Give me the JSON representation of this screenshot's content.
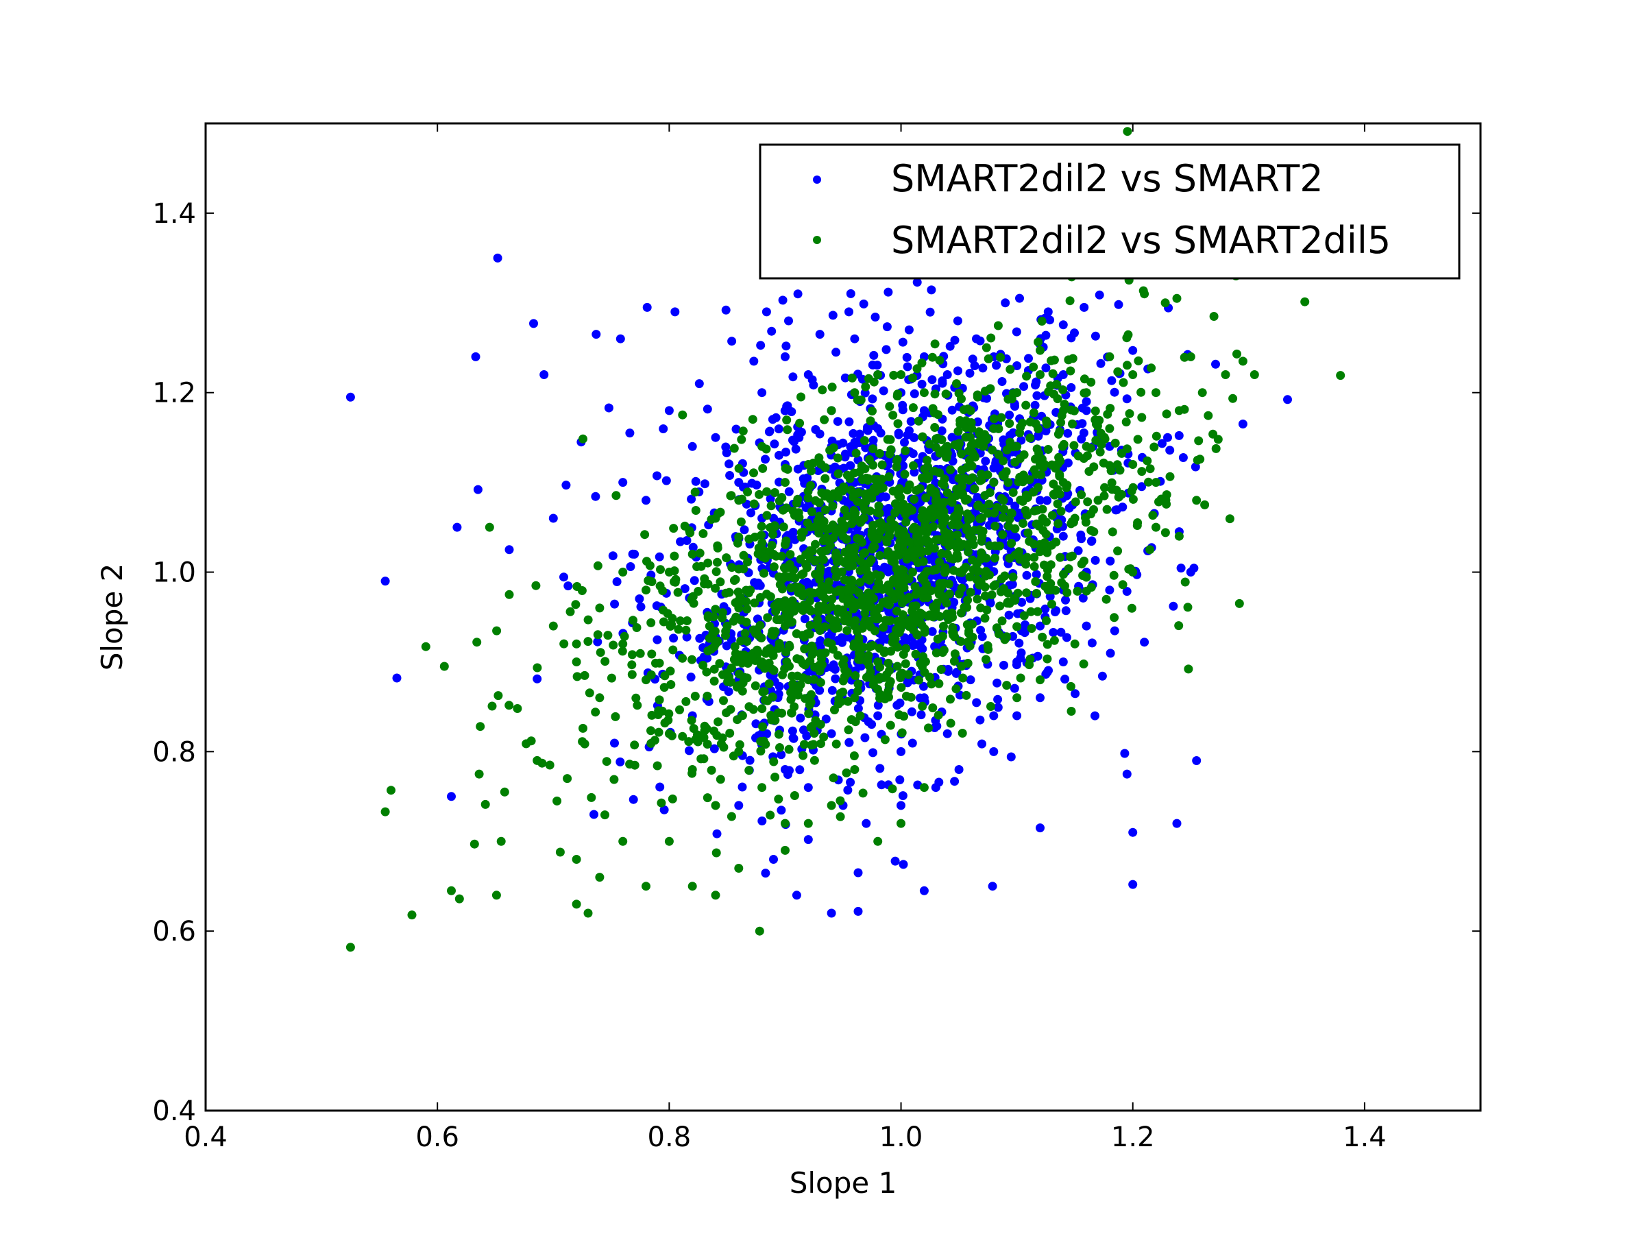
{
  "chart_data": {
    "type": "scatter",
    "xlabel": "Slope 1",
    "ylabel": "Slope 2",
    "xlim": [
      0.4,
      1.5
    ],
    "ylim": [
      0.4,
      1.5
    ],
    "x_ticks": [
      "0.4",
      "0.6",
      "0.8",
      "1.0",
      "1.2",
      "1.4"
    ],
    "y_ticks": [
      "0.4",
      "0.6",
      "0.8",
      "1.0",
      "1.2",
      "1.4"
    ],
    "grid": false,
    "legend_position": "top-right",
    "series": [
      {
        "name": "SMART2dil2 vs SMART2",
        "color": "#0000ff",
        "points": [
          [
            0.525,
            1.195
          ],
          [
            0.652,
            1.35
          ],
          [
            0.555,
            0.99
          ],
          [
            0.565,
            0.882
          ],
          [
            0.617,
            1.05
          ],
          [
            0.633,
            1.24
          ],
          [
            0.635,
            1.092
          ],
          [
            0.662,
            1.025
          ],
          [
            0.683,
            1.277
          ],
          [
            0.692,
            1.22
          ],
          [
            0.7,
            1.06
          ],
          [
            0.711,
            1.097
          ],
          [
            0.724,
            1.145
          ],
          [
            0.737,
            1.265
          ],
          [
            0.748,
            1.183
          ],
          [
            0.758,
            1.26
          ],
          [
            0.766,
            1.155
          ],
          [
            0.781,
            1.295
          ],
          [
            0.805,
            1.29
          ],
          [
            0.826,
            1.21
          ],
          [
            0.849,
            1.292
          ],
          [
            0.873,
            1.235
          ],
          [
            0.884,
            1.29
          ],
          [
            0.898,
            1.303
          ],
          [
            0.903,
            1.28
          ],
          [
            0.911,
            1.31
          ],
          [
            0.93,
            1.265
          ],
          [
            0.955,
            1.29
          ],
          [
            0.989,
            1.312
          ],
          [
            1.007,
            1.27
          ],
          [
            1.014,
            1.323
          ],
          [
            1.049,
            1.28
          ],
          [
            1.065,
            1.26
          ],
          [
            1.09,
            1.3
          ],
          [
            1.127,
            1.29
          ],
          [
            1.158,
            1.295
          ],
          [
            1.2,
            1.247
          ],
          [
            1.295,
            1.165
          ],
          [
            0.612,
            0.75
          ],
          [
            0.735,
            0.73
          ],
          [
            0.86,
            0.74
          ],
          [
            0.89,
            0.68
          ],
          [
            0.91,
            0.64
          ],
          [
            0.94,
            0.62
          ],
          [
            0.963,
            0.622
          ],
          [
            0.995,
            0.678
          ],
          [
            1.02,
            0.645
          ],
          [
            1.079,
            0.65
          ],
          [
            1.12,
            0.715
          ],
          [
            1.2,
            0.652
          ],
          [
            1.2,
            0.71
          ],
          [
            1.238,
            0.72
          ],
          [
            1.255,
            0.79
          ],
          [
            1.193,
            0.798
          ],
          [
            1.195,
            0.775
          ],
          [
            1.21,
            0.922
          ],
          [
            1.235,
            0.962
          ],
          [
            1.25,
            1.0
          ],
          [
            1.24,
            1.045
          ],
          [
            1.23,
            1.15
          ],
          [
            0.82,
            1.14
          ],
          [
            0.8,
            1.18
          ],
          [
            0.78,
            1.08
          ],
          [
            0.77,
            1.02
          ],
          [
            0.76,
            1.1
          ],
          [
            0.84,
            1.15
          ],
          [
            0.82,
            0.84
          ],
          [
            0.86,
            0.88
          ],
          [
            0.88,
            0.82
          ],
          [
            0.9,
            0.78
          ],
          [
            0.92,
            0.76
          ],
          [
            0.95,
            0.74
          ],
          [
            0.97,
            0.72
          ],
          [
            1.0,
            0.74
          ],
          [
            1.03,
            0.76
          ],
          [
            1.05,
            0.78
          ],
          [
            1.08,
            0.8
          ],
          [
            1.1,
            0.84
          ],
          [
            1.12,
            0.86
          ],
          [
            1.14,
            0.9
          ],
          [
            1.16,
            0.94
          ],
          [
            1.18,
            0.98
          ],
          [
            0.88,
            1.2
          ],
          [
            0.9,
            1.24
          ],
          [
            0.92,
            1.22
          ],
          [
            0.94,
            1.18
          ],
          [
            0.96,
            1.26
          ],
          [
            0.98,
            1.22
          ],
          [
            1.0,
            1.2
          ],
          [
            1.02,
            1.24
          ],
          [
            1.04,
            1.22
          ],
          [
            1.06,
            1.18
          ],
          [
            1.08,
            1.24
          ],
          [
            1.1,
            1.2
          ],
          [
            1.12,
            1.16
          ],
          [
            1.14,
            1.22
          ],
          [
            1.16,
            1.18
          ],
          [
            1.18,
            1.14
          ],
          [
            0.86,
            1.1
          ],
          [
            0.88,
            1.06
          ],
          [
            0.9,
            1.12
          ],
          [
            0.92,
            1.08
          ],
          [
            0.94,
            1.14
          ],
          [
            0.96,
            1.1
          ],
          [
            0.98,
            1.16
          ],
          [
            1.0,
            1.12
          ],
          [
            1.02,
            1.18
          ],
          [
            1.04,
            1.14
          ],
          [
            1.06,
            1.1
          ],
          [
            1.08,
            1.16
          ],
          [
            1.1,
            1.12
          ],
          [
            1.12,
            1.08
          ],
          [
            1.14,
            1.04
          ],
          [
            1.16,
            1.0
          ],
          [
            0.9,
            0.9
          ],
          [
            0.92,
            0.86
          ],
          [
            0.94,
            0.82
          ],
          [
            0.96,
            0.88
          ],
          [
            0.98,
            0.84
          ],
          [
            1.0,
            0.8
          ],
          [
            1.02,
            0.86
          ],
          [
            1.04,
            0.82
          ],
          [
            1.06,
            0.88
          ],
          [
            1.08,
            0.84
          ],
          [
            1.1,
            0.9
          ],
          [
            1.12,
            0.94
          ],
          [
            1.14,
            0.98
          ],
          [
            0.95,
            1.0
          ],
          [
            0.97,
            1.02
          ],
          [
            0.99,
            0.98
          ],
          [
            1.01,
            1.04
          ],
          [
            1.03,
            1.0
          ],
          [
            1.05,
            1.06
          ],
          [
            1.07,
            1.02
          ],
          [
            1.09,
            1.08
          ]
        ],
        "cloud": {
          "count": 1400,
          "center": [
            0.995,
            1.02
          ],
          "spread": [
            0.095,
            0.11
          ],
          "corr": 0.35
        }
      },
      {
        "name": "SMART2dil2 vs SMART2dil5",
        "color": "#007f00",
        "points": [
          [
            0.525,
            0.582
          ],
          [
            0.555,
            0.733
          ],
          [
            0.56,
            0.757
          ],
          [
            0.578,
            0.618
          ],
          [
            0.59,
            0.917
          ],
          [
            0.606,
            0.895
          ],
          [
            0.612,
            0.645
          ],
          [
            0.619,
            0.636
          ],
          [
            0.632,
            0.697
          ],
          [
            0.634,
            0.922
          ],
          [
            0.636,
            0.775
          ],
          [
            0.637,
            0.828
          ],
          [
            0.645,
            1.05
          ],
          [
            0.651,
            0.64
          ],
          [
            0.655,
            0.7
          ],
          [
            0.658,
            0.755
          ],
          [
            0.662,
            0.975
          ],
          [
            0.669,
            0.848
          ],
          [
            0.681,
            0.812
          ],
          [
            0.685,
            0.985
          ],
          [
            0.697,
            0.785
          ],
          [
            0.706,
            0.688
          ],
          [
            0.712,
            0.77
          ],
          [
            0.72,
            0.63
          ],
          [
            0.72,
            0.68
          ],
          [
            0.73,
            0.62
          ],
          [
            0.74,
            0.66
          ],
          [
            0.76,
            0.7
          ],
          [
            0.78,
            0.65
          ],
          [
            0.8,
            0.7
          ],
          [
            0.82,
            0.65
          ],
          [
            0.84,
            0.64
          ],
          [
            0.86,
            0.67
          ],
          [
            0.878,
            0.6
          ],
          [
            0.9,
            0.69
          ],
          [
            0.92,
            0.72
          ],
          [
            0.7,
            0.94
          ],
          [
            0.72,
            0.9
          ],
          [
            0.74,
            0.86
          ],
          [
            0.76,
            0.92
          ],
          [
            0.78,
            0.88
          ],
          [
            0.8,
            0.82
          ],
          [
            0.82,
            0.78
          ],
          [
            0.84,
            0.74
          ],
          [
            0.86,
            0.8
          ],
          [
            0.88,
            0.76
          ],
          [
            0.9,
            0.72
          ],
          [
            0.94,
            0.74
          ],
          [
            0.96,
            0.78
          ],
          [
            0.98,
            0.7
          ],
          [
            1.0,
            0.72
          ],
          [
            1.02,
            0.76
          ],
          [
            1.1,
            0.86
          ],
          [
            1.12,
            0.88
          ],
          [
            1.15,
            0.92
          ],
          [
            1.2,
            1.0
          ],
          [
            1.22,
            1.05
          ],
          [
            1.24,
            1.04
          ],
          [
            1.248,
            0.892
          ],
          [
            1.255,
            1.08
          ],
          [
            1.262,
            1.075
          ],
          [
            1.292,
            0.965
          ],
          [
            1.21,
            1.31
          ],
          [
            1.228,
            1.3
          ],
          [
            1.238,
            1.305
          ],
          [
            1.25,
            1.24
          ],
          [
            1.27,
            1.285
          ],
          [
            1.289,
            1.33
          ],
          [
            1.295,
            1.235
          ],
          [
            1.305,
            1.22
          ],
          [
            1.28,
            1.22
          ],
          [
            1.26,
            1.2
          ],
          [
            1.24,
            1.18
          ],
          [
            1.22,
            1.2
          ],
          [
            1.2,
            1.22
          ],
          [
            1.18,
            1.24
          ],
          [
            1.16,
            1.2
          ],
          [
            1.14,
            1.18
          ],
          [
            1.12,
            1.22
          ],
          [
            1.1,
            1.2
          ],
          [
            1.08,
            1.16
          ],
          [
            1.06,
            1.18
          ],
          [
            1.04,
            1.14
          ],
          [
            1.02,
            1.2
          ],
          [
            1.0,
            1.22
          ],
          [
            0.98,
            1.22
          ],
          [
            0.96,
            1.2
          ],
          [
            0.94,
            1.18
          ],
          [
            0.92,
            1.12
          ],
          [
            0.9,
            1.1
          ],
          [
            0.88,
            1.14
          ],
          [
            0.86,
            1.08
          ],
          [
            0.84,
            1.06
          ],
          [
            0.82,
            1.02
          ],
          [
            0.8,
            1.0
          ],
          [
            0.78,
            0.98
          ],
          [
            0.76,
            1.0
          ],
          [
            0.74,
            0.96
          ],
          [
            0.72,
            0.92
          ],
          [
            0.84,
            0.92
          ],
          [
            0.86,
            0.96
          ],
          [
            0.88,
            0.9
          ],
          [
            0.9,
            0.94
          ],
          [
            0.92,
            0.88
          ],
          [
            0.94,
            0.92
          ],
          [
            0.96,
            0.86
          ],
          [
            0.98,
            0.9
          ],
          [
            1.0,
            0.94
          ],
          [
            1.02,
            0.98
          ],
          [
            1.04,
            1.02
          ],
          [
            1.06,
            1.06
          ],
          [
            1.08,
            1.1
          ],
          [
            1.1,
            1.14
          ],
          [
            1.12,
            1.12
          ],
          [
            1.14,
            1.1
          ],
          [
            1.16,
            1.14
          ],
          [
            1.18,
            1.16
          ],
          [
            1.2,
            1.12
          ],
          [
            1.22,
            1.1
          ],
          [
            1.13,
            1.03
          ],
          [
            1.15,
            1.06
          ],
          [
            1.17,
            1.08
          ],
          [
            1.07,
            1.04
          ],
          [
            1.05,
            1.0
          ],
          [
            1.03,
            0.96
          ],
          [
            1.01,
            1.0
          ],
          [
            0.99,
            1.04
          ],
          [
            0.97,
            1.08
          ],
          [
            0.95,
            1.04
          ],
          [
            0.93,
            1.0
          ],
          [
            0.91,
            0.96
          ],
          [
            0.89,
            1.02
          ],
          [
            0.87,
            0.98
          ],
          [
            0.85,
            0.94
          ]
        ],
        "cloud": {
          "count": 1700,
          "center": [
            0.985,
            1.005
          ],
          "spread": [
            0.11,
            0.105
          ],
          "corr": 0.55
        }
      }
    ]
  }
}
